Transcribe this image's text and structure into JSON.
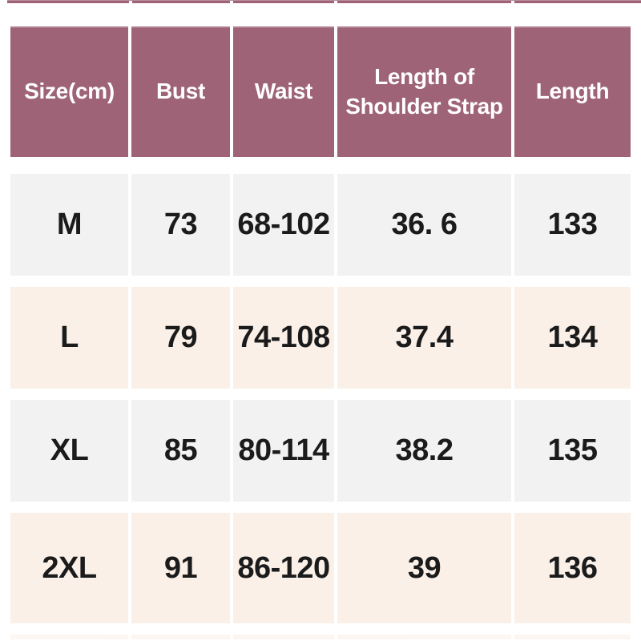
{
  "palette": {
    "page_bg": "#ffffff",
    "header_bg": "#9e6377",
    "header_bg_light": "#bb8d9b",
    "header_text": "#ffffff",
    "row_gray": "#f2f2f2",
    "row_pink": "#faf0e8",
    "cell_text": "#1b1b1b"
  },
  "table": {
    "columns": [
      "Size(cm)",
      "Bust",
      "Waist",
      "Length of\nShoulder Strap",
      "Length"
    ],
    "rows": [
      {
        "cells": [
          "M",
          "73",
          "68-102",
          "36. 6",
          "133"
        ]
      },
      {
        "cells": [
          "L",
          "79",
          "74-108",
          "37.4",
          "134"
        ]
      },
      {
        "cells": [
          "XL",
          "85",
          "80-114",
          "38.2",
          "135"
        ]
      },
      {
        "cells": [
          "2XL",
          "91",
          "86-120",
          "39",
          "136"
        ]
      }
    ]
  }
}
